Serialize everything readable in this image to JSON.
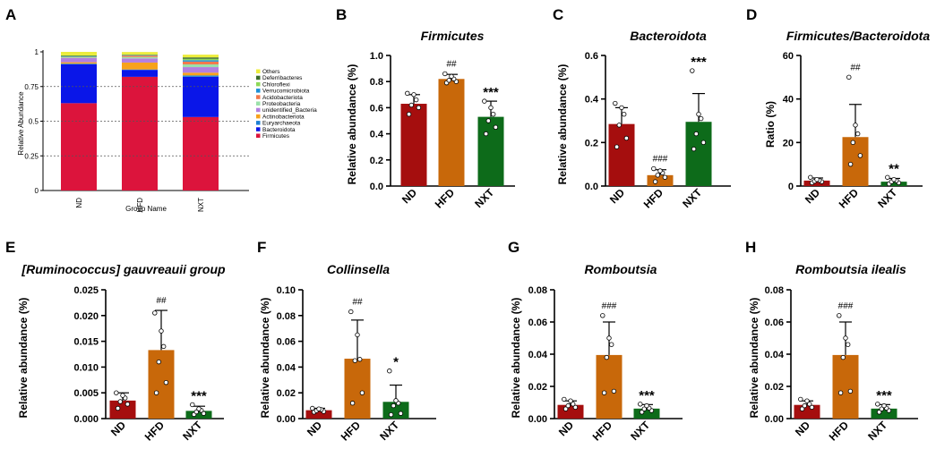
{
  "figure": {
    "panel_letters": [
      "A",
      "B",
      "C",
      "D",
      "E",
      "F",
      "G",
      "H"
    ]
  },
  "chart_data": [
    {
      "panel": "A",
      "type": "bar",
      "stacked": true,
      "title": "",
      "xlabel": "Group Name",
      "ylabel": "Relative Abundance",
      "ylim": [
        0,
        1
      ],
      "yticks": [
        0,
        0.25,
        0.5,
        0.75,
        1
      ],
      "ytick_labels": [
        "0",
        "0.25",
        "0.5",
        "0.75",
        "1"
      ],
      "gridlines": "dashed at 0.25, 0.5, 0.75",
      "categories": [
        "ND",
        "HFD",
        "NXT"
      ],
      "series": [
        {
          "name": "Firmicutes",
          "color": "#dc143c",
          "values": [
            0.63,
            0.82,
            0.53
          ]
        },
        {
          "name": "Bacteroidota",
          "color": "#0a16e8",
          "values": [
            0.28,
            0.05,
            0.29
          ]
        },
        {
          "name": "Euryarchaeota",
          "color": "#1c7fd4",
          "values": [
            0.005,
            0.003,
            0.01
          ]
        },
        {
          "name": "Actinobacteriota",
          "color": "#f7a21b",
          "values": [
            0.01,
            0.05,
            0.02
          ]
        },
        {
          "name": "unidentified_Bacteria",
          "color": "#b27fe0",
          "values": [
            0.03,
            0.03,
            0.04
          ]
        },
        {
          "name": "Proteobacteria",
          "color": "#9be1aa",
          "values": [
            0.005,
            0.01,
            0.02
          ]
        },
        {
          "name": "Acidobacteriota",
          "color": "#f2784b",
          "values": [
            0.003,
            0.01,
            0.02
          ]
        },
        {
          "name": "Verrucomicrobiota",
          "color": "#1d8fd6",
          "values": [
            0.004,
            0.003,
            0.01
          ]
        },
        {
          "name": "Chloroflexi",
          "color": "#8ed957",
          "values": [
            0.004,
            0.003,
            0.01
          ]
        },
        {
          "name": "Deferribacteres",
          "color": "#3a6b2b",
          "values": [
            0.004,
            0.002,
            0.01
          ]
        },
        {
          "name": "Others",
          "color": "#ecec3c",
          "values": [
            0.025,
            0.018,
            0.02
          ]
        }
      ],
      "legend_order": [
        "Others",
        "Deferribacteres",
        "Chloroflexi",
        "Verrucomicrobiota",
        "Acidobacteriota",
        "Proteobacteria",
        "unidentified_Bacteria",
        "Actinobacteriota",
        "Euryarchaeota",
        "Bacteroidota",
        "Firmicutes"
      ],
      "legend_position": "right"
    },
    {
      "panel": "B",
      "type": "bar",
      "title": "Firmicutes",
      "xlabel": "",
      "ylabel": "Relative abundance (%)",
      "ylim": [
        0,
        1.0
      ],
      "yticks": [
        0,
        0.2,
        0.4,
        0.6,
        0.8,
        1.0
      ],
      "ytick_labels": [
        "0.0",
        "0.2",
        "0.4",
        "0.6",
        "0.8",
        "1.0"
      ],
      "categories": [
        "ND",
        "HFD",
        "NXT"
      ],
      "colors": [
        "#a50e0e",
        "#c8680a",
        "#0d6b1a"
      ],
      "values": [
        0.63,
        0.82,
        0.53
      ],
      "errors": [
        0.07,
        0.035,
        0.12
      ],
      "points": [
        [
          0.55,
          0.6,
          0.62,
          0.66,
          0.7,
          0.71
        ],
        [
          0.79,
          0.8,
          0.81,
          0.82,
          0.84,
          0.86
        ],
        [
          0.4,
          0.45,
          0.5,
          0.55,
          0.6,
          0.65
        ]
      ],
      "annotations": [
        "",
        "##",
        "***"
      ]
    },
    {
      "panel": "C",
      "type": "bar",
      "title": "Bacteroidota",
      "xlabel": "",
      "ylabel": "Relative abundance (%)",
      "ylim": [
        0,
        0.6
      ],
      "yticks": [
        0,
        0.2,
        0.4,
        0.6
      ],
      "ytick_labels": [
        "0.0",
        "0.2",
        "0.4",
        "0.6"
      ],
      "categories": [
        "ND",
        "HFD",
        "NXT"
      ],
      "colors": [
        "#a50e0e",
        "#c8680a",
        "#0d6b1a"
      ],
      "values": [
        0.285,
        0.05,
        0.295
      ],
      "errors": [
        0.075,
        0.025,
        0.13
      ],
      "points": [
        [
          0.18,
          0.22,
          0.28,
          0.33,
          0.36,
          0.38
        ],
        [
          0.02,
          0.04,
          0.05,
          0.06,
          0.07,
          0.08
        ],
        [
          0.17,
          0.2,
          0.24,
          0.31,
          0.33,
          0.53
        ]
      ],
      "annotations": [
        "",
        "###",
        "***"
      ]
    },
    {
      "panel": "D",
      "type": "bar",
      "title": "Firmicutes/Bacteroidota",
      "xlabel": "",
      "ylabel": "Ratio (%)",
      "ylim": [
        0,
        60
      ],
      "yticks": [
        0,
        20,
        40,
        60
      ],
      "ytick_labels": [
        "0",
        "20",
        "40",
        "60"
      ],
      "categories": [
        "ND",
        "HFD",
        "NXT"
      ],
      "colors": [
        "#a50e0e",
        "#c8680a",
        "#0d6b1a"
      ],
      "values": [
        2.5,
        22.5,
        2.0
      ],
      "errors": [
        1.2,
        15.0,
        1.5
      ],
      "points": [
        [
          1.5,
          2.0,
          2.2,
          2.6,
          3.0,
          4.0
        ],
        [
          10.0,
          14.0,
          20.0,
          24.0,
          28.0,
          50.0
        ],
        [
          1.0,
          1.5,
          2.0,
          2.5,
          3.0,
          4.0
        ]
      ],
      "annotations": [
        "",
        "##",
        "**"
      ]
    },
    {
      "panel": "E",
      "type": "bar",
      "title": "[Ruminococcus] gauvreauii group",
      "xlabel": "",
      "ylabel": "Relative abundance (%)",
      "ylim": [
        0,
        0.025
      ],
      "yticks": [
        0,
        0.005,
        0.01,
        0.015,
        0.02,
        0.025
      ],
      "ytick_labels": [
        "0.000",
        "0.005",
        "0.010",
        "0.015",
        "0.020",
        "0.025"
      ],
      "categories": [
        "ND",
        "HFD",
        "NXT"
      ],
      "colors": [
        "#a50e0e",
        "#c8680a",
        "#0d6b1a"
      ],
      "values": [
        0.0035,
        0.0133,
        0.0015
      ],
      "errors": [
        0.0015,
        0.0077,
        0.0009
      ],
      "points": [
        [
          0.002,
          0.0028,
          0.0033,
          0.004,
          0.0045,
          0.005
        ],
        [
          0.005,
          0.007,
          0.011,
          0.014,
          0.017,
          0.0205
        ],
        [
          0.0008,
          0.001,
          0.0013,
          0.0016,
          0.0019,
          0.0027
        ]
      ],
      "annotations": [
        "",
        "##",
        "***"
      ]
    },
    {
      "panel": "F",
      "type": "bar",
      "title": "Collinsella",
      "xlabel": "",
      "ylabel": "Relative abundance (%)",
      "ylim": [
        0,
        0.1
      ],
      "yticks": [
        0,
        0.02,
        0.04,
        0.06,
        0.08,
        0.1
      ],
      "ytick_labels": [
        "0.00",
        "0.02",
        "0.04",
        "0.06",
        "0.08",
        "0.10"
      ],
      "categories": [
        "ND",
        "HFD",
        "NXT"
      ],
      "colors": [
        "#a50e0e",
        "#c8680a",
        "#0d6b1a"
      ],
      "values": [
        0.0065,
        0.0465,
        0.013
      ],
      "errors": [
        0.0015,
        0.03,
        0.013
      ],
      "points": [
        [
          0.005,
          0.0055,
          0.0062,
          0.007,
          0.0075,
          0.008
        ],
        [
          0.012,
          0.02,
          0.045,
          0.046,
          0.065,
          0.083
        ],
        [
          0.003,
          0.004,
          0.01,
          0.012,
          0.014,
          0.037
        ]
      ],
      "annotations": [
        "",
        "##",
        "*"
      ]
    },
    {
      "panel": "G",
      "type": "bar",
      "title": "Romboutsia",
      "xlabel": "",
      "ylabel": "Relative abundance (%)",
      "ylim": [
        0,
        0.08
      ],
      "yticks": [
        0,
        0.02,
        0.04,
        0.06,
        0.08
      ],
      "ytick_labels": [
        "0.00",
        "0.02",
        "0.04",
        "0.06",
        "0.08"
      ],
      "categories": [
        "ND",
        "HFD",
        "NXT"
      ],
      "colors": [
        "#a50e0e",
        "#c8680a",
        "#0d6b1a"
      ],
      "values": [
        0.0085,
        0.0395,
        0.0062
      ],
      "errors": [
        0.0025,
        0.0205,
        0.0025
      ],
      "points": [
        [
          0.006,
          0.007,
          0.008,
          0.009,
          0.011,
          0.012
        ],
        [
          0.016,
          0.017,
          0.038,
          0.046,
          0.05,
          0.064
        ],
        [
          0.004,
          0.005,
          0.006,
          0.0065,
          0.008,
          0.009
        ]
      ],
      "annotations": [
        "",
        "###",
        "***"
      ]
    },
    {
      "panel": "H",
      "type": "bar",
      "title": "Romboutsia ilealis",
      "xlabel": "",
      "ylabel": "Relative abundance (%)",
      "ylim": [
        0,
        0.08
      ],
      "yticks": [
        0,
        0.02,
        0.04,
        0.06,
        0.08
      ],
      "ytick_labels": [
        "0.00",
        "0.02",
        "0.04",
        "0.06",
        "0.08"
      ],
      "categories": [
        "ND",
        "HFD",
        "NXT"
      ],
      "colors": [
        "#a50e0e",
        "#c8680a",
        "#0d6b1a"
      ],
      "values": [
        0.0085,
        0.0395,
        0.0062
      ],
      "errors": [
        0.0025,
        0.0205,
        0.0025
      ],
      "points": [
        [
          0.006,
          0.007,
          0.008,
          0.009,
          0.011,
          0.012
        ],
        [
          0.016,
          0.017,
          0.038,
          0.046,
          0.05,
          0.064
        ],
        [
          0.004,
          0.005,
          0.006,
          0.0065,
          0.008,
          0.009
        ]
      ],
      "annotations": [
        "",
        "###",
        "***"
      ]
    }
  ]
}
